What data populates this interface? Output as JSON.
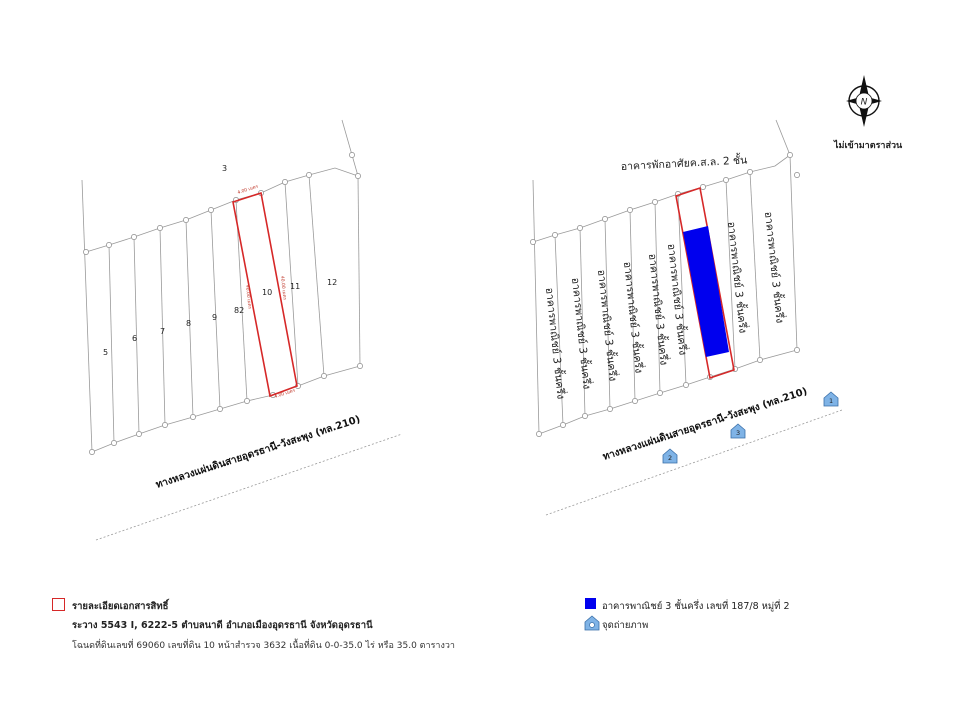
{
  "north_arrow": {
    "letter": "N",
    "icon": "north-arrow-icon"
  },
  "scale_note": "ไม่เข้ามาตราส่วน",
  "left_plan": {
    "parcel_numbers": [
      "3",
      "5",
      "6",
      "7",
      "8",
      "9",
      "82",
      "10",
      "11",
      "12"
    ],
    "road_label": "ทางหลวงแผ่นดินสายอุดรธานี-วังสะพุง (ทล.210)",
    "dims": {
      "top": "4.00 เมตร",
      "bottom": "4.00 เมตร",
      "left": "40.00 เมตร",
      "right": "40.00 เมตร"
    }
  },
  "right_plan": {
    "top_label": "อาคารพักอาศัยค.ส.ล. 2 ชั้น",
    "building_label": "อาคารพาณิชย์ 3 ชั้นครึ่ง",
    "road_label": "ทางหลวงแผ่นดินสายอุดรธานี-วังสะพุง (ทล.210)",
    "photo_points": [
      "1",
      "2",
      "3"
    ]
  },
  "legend_left": {
    "title": "รายละเอียดเอกสารสิทธิ์",
    "line1": "ระวาง 5543 I, 6222-5  ตำบลนาดี  อำเภอเมืองอุดรธานี  จังหวัดอุดรธานี",
    "line2": "โฉนดที่ดินเลขที่ 69060 เลขที่ดิน 10 หน้าสำรวจ 3632  เนื้อที่ดิน 0-0-35.0 ไร่ หรือ 35.0 ตารางวา",
    "swatch_color": "#d62828"
  },
  "legend_right": {
    "building": "อาคารพาณิชย์ 3 ชั้นครึ่ง เลขที่ 187/8 หมู่ที่ 2",
    "photo_point": "จุดถ่ายภาพ",
    "building_color": "#0000ee",
    "photo_icon": "camera-point-icon"
  }
}
